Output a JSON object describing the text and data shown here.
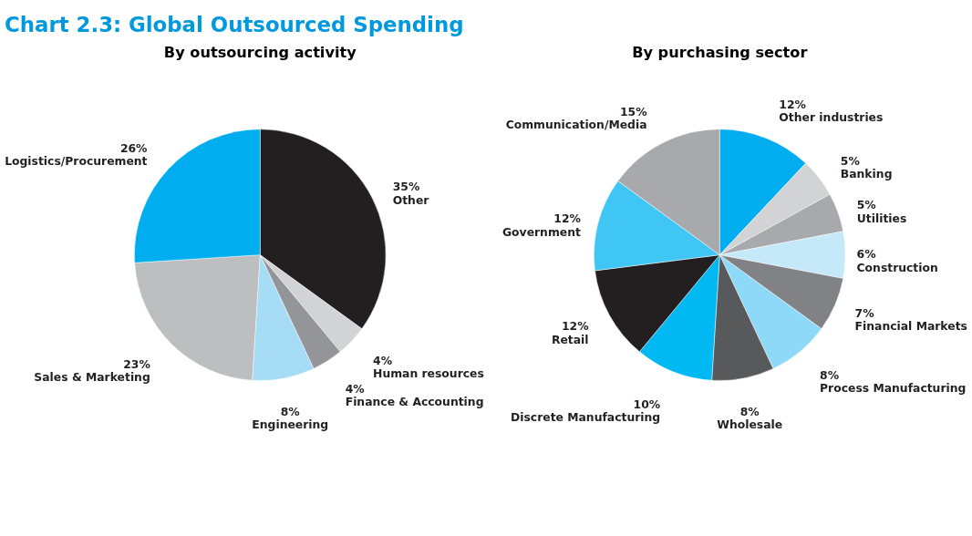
{
  "chart_data": [
    {
      "type": "pie",
      "title": "Chart 2.3: Global Outsourced Spending",
      "subtitle": "By outsourcing activity",
      "categories": [
        "Other",
        "Human resources",
        "Finance & Accounting",
        "Engineering",
        "Sales & Marketing",
        "Logistics/Procurement"
      ],
      "values": [
        35,
        4,
        4,
        8,
        23,
        26
      ],
      "colors": [
        "#231f20",
        "#d1d3d4",
        "#939598",
        "#a6dcf5",
        "#bcbec0",
        "#00aeef"
      ],
      "value_labels": [
        "35%",
        "4%",
        "4%",
        "8%",
        "23%",
        "26%"
      ]
    },
    {
      "type": "pie",
      "subtitle": "By purchasing sector",
      "categories": [
        "Other industries",
        "Banking",
        "Utilities",
        "Construction",
        "Financial Markets",
        "Process Manufacturing",
        "Wholesale",
        "Discrete Manufacturing",
        "Retail",
        "Government",
        "Communication/Media"
      ],
      "values": [
        12,
        5,
        5,
        6,
        7,
        8,
        8,
        10,
        12,
        12,
        15
      ],
      "colors": [
        "#00aeef",
        "#d1d3d4",
        "#a7a9ac",
        "#c6e9f9",
        "#808285",
        "#8ed8f8",
        "#58595b",
        "#00b9f2",
        "#231f20",
        "#3fc6f4",
        "#a7a9ac"
      ],
      "value_labels": [
        "12%",
        "5%",
        "5%",
        "6%",
        "7%",
        "8%",
        "8%",
        "10%",
        "12%",
        "12%",
        "15%"
      ]
    }
  ]
}
